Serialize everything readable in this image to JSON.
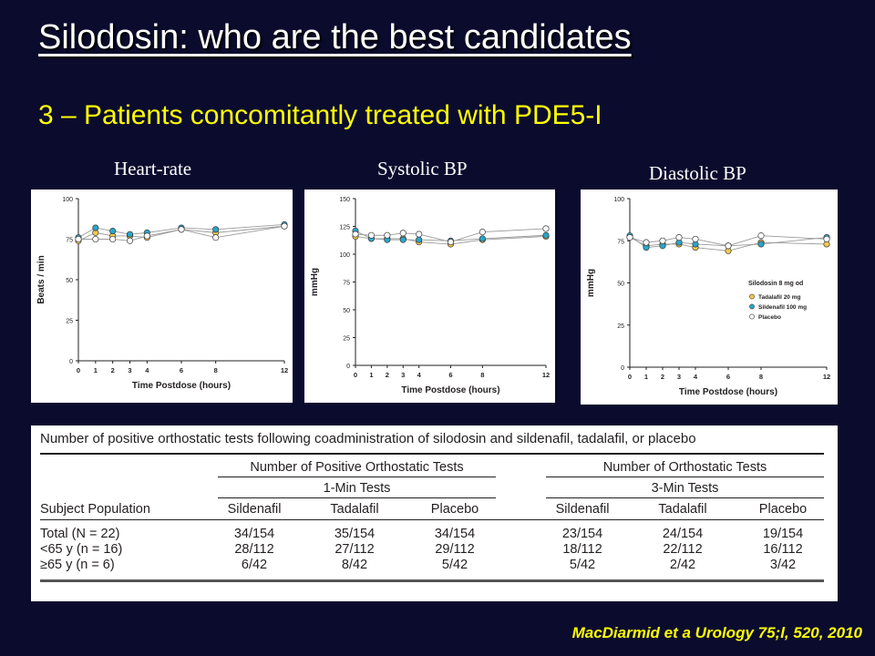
{
  "slide": {
    "title": "Silodosin: who are the best candidates",
    "subtitle": "3 – Patients concomitantly treated with PDE5-I",
    "citation": "MacDiarmid et a Urology 75;l, 520, 2010"
  },
  "colors": {
    "tadalafil": "#f2c94c",
    "sildenafil": "#2aa6c8",
    "placebo": "#ffffff",
    "background": "#0b0b2e",
    "accent": "#ffff00"
  },
  "panels": {
    "heart_rate": "Heart-rate",
    "systolic": "Systolic BP",
    "diastolic": "Diastolic BP"
  },
  "chart_data": [
    {
      "type": "line",
      "xlabel": "Time Postdose (hours)",
      "ylabel": "Beats / min",
      "ylim": [
        0,
        100
      ],
      "yticks": [
        0,
        25,
        50,
        75,
        100
      ],
      "xticks": [
        0,
        1,
        2,
        3,
        4,
        6,
        8,
        12
      ],
      "x": [
        0,
        1,
        2,
        3,
        4,
        6,
        8,
        12
      ],
      "series": [
        {
          "name": "Tadalafil 20 mg",
          "values": [
            74,
            79,
            77,
            77,
            76,
            81,
            79,
            83
          ]
        },
        {
          "name": "Sildenafil 100 mg",
          "values": [
            76,
            82,
            80,
            78,
            79,
            82,
            81,
            84
          ]
        },
        {
          "name": "Placebo",
          "values": [
            75,
            75,
            75,
            74,
            77,
            81,
            76,
            83
          ]
        }
      ]
    },
    {
      "type": "line",
      "xlabel": "Time Postdose (hours)",
      "ylabel": "mmHg",
      "ylim": [
        0,
        150
      ],
      "yticks": [
        0,
        25,
        50,
        75,
        100,
        125,
        150
      ],
      "xticks": [
        0,
        1,
        2,
        3,
        4,
        6,
        8,
        12
      ],
      "x": [
        0,
        1,
        2,
        3,
        4,
        6,
        8,
        12
      ],
      "series": [
        {
          "name": "Tadalafil 20 mg",
          "values": [
            116,
            114,
            114,
            114,
            111,
            109,
            113,
            116
          ]
        },
        {
          "name": "Sildenafil 100 mg",
          "values": [
            121,
            114,
            113,
            113,
            113,
            112,
            114,
            117
          ]
        },
        {
          "name": "Placebo",
          "values": [
            118,
            117,
            117,
            119,
            118,
            111,
            120,
            123
          ]
        }
      ]
    },
    {
      "type": "line",
      "xlabel": "Time Postdose (hours)",
      "ylabel": "mmHg",
      "ylim": [
        0,
        100
      ],
      "yticks": [
        0,
        25,
        50,
        75,
        100
      ],
      "xticks": [
        0,
        1,
        2,
        3,
        4,
        6,
        8,
        12
      ],
      "x": [
        0,
        1,
        2,
        3,
        4,
        6,
        8,
        12
      ],
      "legend_title": "Silodosin 8 mg od",
      "legend_position": "right",
      "series": [
        {
          "name": "Tadalafil 20 mg",
          "values": [
            77,
            72,
            73,
            73,
            71,
            69,
            74,
            73
          ]
        },
        {
          "name": "Sildenafil 100 mg",
          "values": [
            78,
            71,
            72,
            74,
            73,
            72,
            73,
            77
          ]
        },
        {
          "name": "Placebo",
          "values": [
            77,
            74,
            75,
            77,
            76,
            72,
            78,
            76
          ]
        }
      ]
    },
    {
      "type": "table",
      "title": "Number of positive orthostatic tests following coadministration of silodosin and sildenafil, tadalafil, or placebo",
      "group_headers": [
        "Number of Positive Orthostatic Tests",
        "Number of Orthostatic Tests"
      ],
      "sub_headers": [
        "1-Min Tests",
        "3-Min Tests"
      ],
      "row_header": "Subject Population",
      "columns": [
        "Sildenafil",
        "Tadalafil",
        "Placebo",
        "Sildenafil",
        "Tadalafil",
        "Placebo"
      ],
      "rows": [
        {
          "label": "Total (N = 22)",
          "cells": [
            "34/154",
            "35/154",
            "34/154",
            "23/154",
            "24/154",
            "19/154"
          ]
        },
        {
          "label": "<65 y (n = 16)",
          "cells": [
            "28/112",
            "27/112",
            "29/112",
            "18/112",
            "22/112",
            "16/112"
          ]
        },
        {
          "label": "≥65 y (n = 6)",
          "cells": [
            "6/42",
            "8/42",
            "5/42",
            "5/42",
            "2/42",
            "3/42"
          ]
        }
      ]
    }
  ]
}
